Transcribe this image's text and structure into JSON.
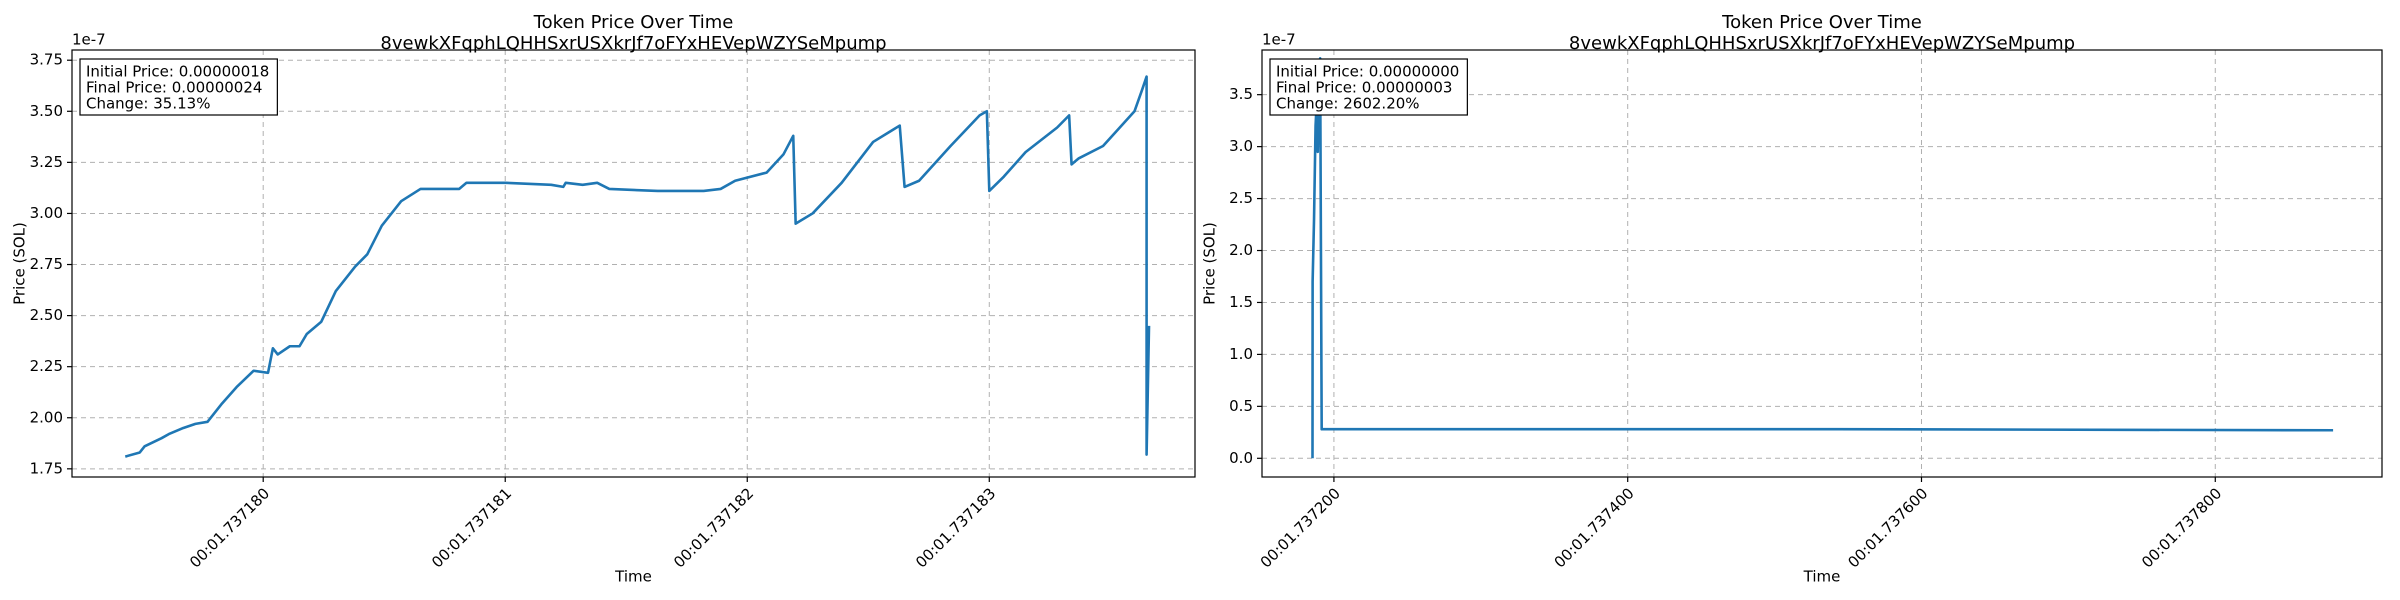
{
  "chart_data": [
    {
      "type": "line",
      "title": "Token Price Over Time",
      "subtitle": "8vewkXFqphLQHHSxrUSXkrJf7oFYxHEVepWZYSeMpump",
      "xlabel": "Time",
      "ylabel": "Price (SOL)",
      "y_offset_label": "1e-7",
      "annotation": [
        "Initial Price: 0.00000018",
        "Final Price: 0.00000024",
        "Change: 35.13%"
      ],
      "color": "#1f77b4",
      "grid": true,
      "xlim": [
        1.73717921,
        1.73718385
      ],
      "xticks": [
        {
          "value": 1.73718,
          "label": "00:01.737180"
        },
        {
          "value": 1.737181,
          "label": "00:01.737181"
        },
        {
          "value": 1.737182,
          "label": "00:01.737182"
        },
        {
          "value": 1.737183,
          "label": "00:01.737183"
        }
      ],
      "ylim": [
        1.71,
        3.8
      ],
      "yticks": [
        1.75,
        {
          "value": 2,
          "label": "2.00"
        },
        2.25,
        {
          "value": 2.5,
          "label": "2.50"
        },
        2.75,
        {
          "value": 3,
          "label": "3.00"
        },
        3.25,
        {
          "value": 3.5,
          "label": "3.50"
        },
        3.75
      ],
      "x": [
        1.73717943,
        1.73717949,
        1.73717951,
        1.73717958,
        1.73717961,
        1.73717967,
        1.73717972,
        1.73717977,
        1.73717983,
        1.73717989,
        1.73717996,
        1.73718002,
        1.73718004,
        1.73718006,
        1.73718011,
        1.73718015,
        1.73718018,
        1.73718024,
        1.7371803,
        1.73718038,
        1.73718043,
        1.73718049,
        1.73718057,
        1.73718065,
        1.73718081,
        1.73718084,
        1.737181,
        1.73718119,
        1.73718124,
        1.73718125,
        1.73718132,
        1.73718138,
        1.73718143,
        1.73718163,
        1.73718182,
        1.73718189,
        1.73718195,
        1.73718208,
        1.73718215,
        1.73718219,
        1.7371822,
        1.73718227,
        1.73718239,
        1.73718252,
        1.73718263,
        1.73718265,
        1.73718271,
        1.73718284,
        1.73718296,
        1.73718299,
        1.737183,
        1.73718306,
        1.73718315,
        1.73718328,
        1.73718333,
        1.73718334,
        1.73718337,
        1.73718347,
        1.7371836,
        1.73718363,
        1.73718365,
        1.73718365,
        1.73718366
      ],
      "values": [
        1.81,
        1.83,
        1.86,
        1.9,
        1.92,
        1.95,
        1.97,
        1.98,
        2.07,
        2.15,
        2.23,
        2.22,
        2.34,
        2.31,
        2.35,
        2.35,
        2.41,
        2.47,
        2.62,
        2.74,
        2.8,
        2.94,
        3.06,
        3.12,
        3.12,
        3.15,
        3.15,
        3.14,
        3.13,
        3.15,
        3.14,
        3.15,
        3.12,
        3.11,
        3.11,
        3.12,
        3.16,
        3.2,
        3.29,
        3.38,
        2.95,
        3.0,
        3.15,
        3.35,
        3.43,
        3.13,
        3.16,
        3.33,
        3.48,
        3.5,
        3.11,
        3.18,
        3.3,
        3.42,
        3.48,
        3.24,
        3.27,
        3.33,
        3.5,
        3.6,
        3.67,
        1.82,
        2.45
      ]
    },
    {
      "type": "line",
      "title": "Token Price Over Time",
      "subtitle": "8vewkXFqphLQHHSxrUSXkrJf7oFYxHEVepWZYSeMpump",
      "xlabel": "Time",
      "ylabel": "Price (SOL)",
      "y_offset_label": "1e-7",
      "annotation": [
        "Initial Price: 0.00000000",
        "Final Price: 0.00000003",
        "Change: 2602.20%"
      ],
      "color": "#1f77b4",
      "grid": true,
      "xlim": [
        1.73715104,
        1.7379135
      ],
      "xticks": [
        {
          "value": 1.7372,
          "label": "00:01.737200"
        },
        {
          "value": 1.7374,
          "label": "00:01.737400"
        },
        {
          "value": 1.7376,
          "label": "00:01.737600"
        },
        {
          "value": 1.7378,
          "label": "00:01.737800"
        }
      ],
      "ylim": [
        -0.18,
        3.93
      ],
      "yticks": [
        {
          "value": 0,
          "label": "0.0"
        },
        0.5,
        {
          "value": 1,
          "label": "1.0"
        },
        1.5,
        {
          "value": 2,
          "label": "2.0"
        },
        2.5,
        {
          "value": 3,
          "label": "3.0"
        },
        3.5
      ],
      "x": [
        1.73718542,
        1.7371855,
        1.73718646,
        1.7371875,
        1.73718854,
        1.737189,
        1.73718958,
        1.73719063,
        1.73719167,
        1.73722917,
        1.73754167,
        1.73788021
      ],
      "values": [
        0.0,
        1.7,
        2.3,
        3.2,
        3.5,
        2.95,
        3.4,
        3.85,
        0.28,
        0.28,
        0.28,
        0.27
      ]
    }
  ]
}
